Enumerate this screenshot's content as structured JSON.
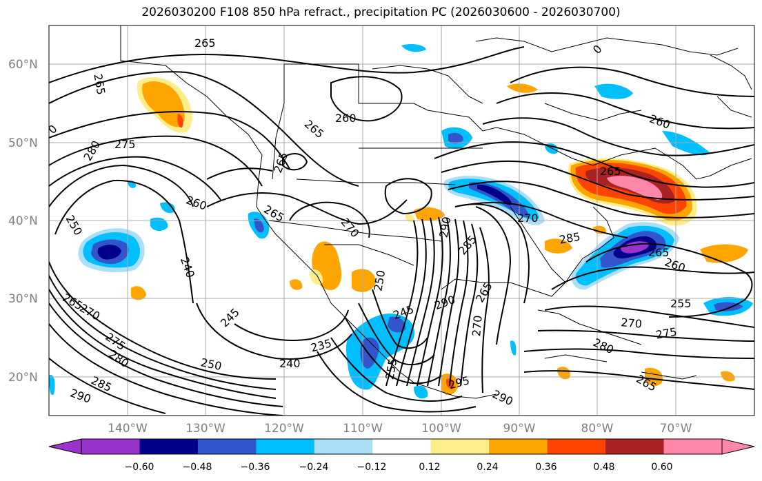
{
  "title": "2026030200 F108 850 hPa refract., precipitation PC (2026030600 - 2026030700)",
  "lat_labels": [
    "60°N",
    "50°N",
    "40°N",
    "30°N",
    "20°N"
  ],
  "lon_labels": [
    "140°W",
    "130°W",
    "120°W",
    "110°W",
    "100°W",
    "90°W",
    "80°W",
    "70°W"
  ],
  "colorbar": {
    "ticks": [
      "−0.60",
      "−0.48",
      "−0.36",
      "−0.24",
      "−0.12",
      "0.12",
      "0.24",
      "0.36",
      "0.48",
      "0.60"
    ],
    "colors": [
      "#9933cc",
      "#00008b",
      "#3355cc",
      "#00bfff",
      "#aadff7",
      "#ffffff",
      "#ffee88",
      "#ffa500",
      "#ff4400",
      "#aa2222",
      "#ff88aa"
    ]
  },
  "contour_labels": [
    "265",
    "265",
    "260",
    "265",
    "265",
    "260",
    "265",
    "280",
    "275",
    "260",
    "250",
    "240",
    "265",
    "270",
    "275",
    "280",
    "285",
    "290",
    "250",
    "245",
    "235",
    "240",
    "255",
    "245",
    "250",
    "265",
    "270",
    "285",
    "290",
    "265",
    "270",
    "295",
    "290",
    "290",
    "270",
    "285",
    "265",
    "260",
    "255",
    "270",
    "275",
    "280",
    "265",
    "0",
    "0"
  ],
  "chart_data": {
    "type": "map",
    "projection": "lat-lon",
    "extent": {
      "lon": [
        -150,
        -60
      ],
      "lat": [
        15,
        65
      ]
    },
    "level": "850 hPa",
    "contour_field": "refractivity",
    "shaded_field": "precipitation PC",
    "color_levels": [
      -0.6,
      -0.48,
      -0.36,
      -0.24,
      -0.12,
      0.12,
      0.24,
      0.36,
      0.48,
      0.6
    ],
    "contour_values_labeled": [
      235,
      240,
      245,
      250,
      255,
      260,
      265,
      270,
      275,
      280,
      285,
      290,
      295
    ],
    "gridlines": true
  }
}
